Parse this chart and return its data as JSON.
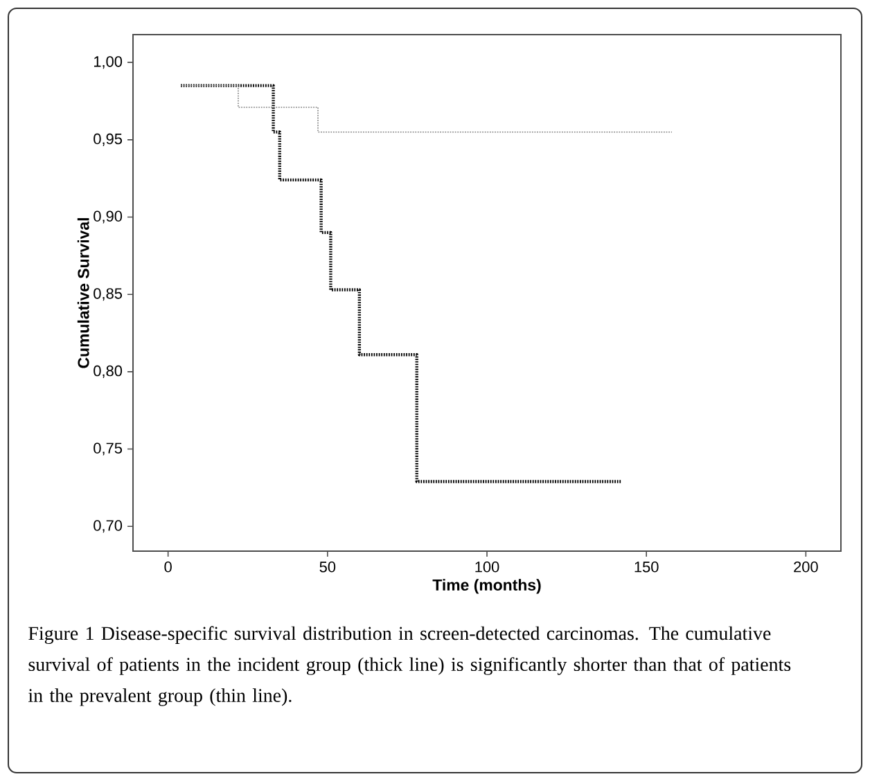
{
  "chart_data": {
    "type": "step",
    "xlabel": "Time (months)",
    "ylabel": "Cumulative Survival",
    "series": [
      {
        "color": "#000000",
        "x": [
          4,
          33,
          35,
          48,
          51,
          60,
          78,
          142
        ],
        "values": [
          0.985,
          0.955,
          0.924,
          0.89,
          0.853,
          0.811,
          0.729,
          0.729
        ]
      },
      {
        "color": "#808080",
        "x": [
          4,
          22,
          47,
          158
        ],
        "values": [
          0.985,
          0.971,
          0.955,
          0.955
        ]
      }
    ],
    "xlim": [
      -11,
      211
    ],
    "ylim": [
      0.684,
      1.018
    ],
    "xticks": [
      0,
      50,
      100,
      150,
      200
    ],
    "yticks": [
      {
        "value": 0.7,
        "label": "0,70"
      },
      {
        "value": 0.75,
        "label": "0,75"
      },
      {
        "value": 0.8,
        "label": "0,80"
      },
      {
        "value": 0.85,
        "label": "0,85"
      },
      {
        "value": 0.9,
        "label": "0,90"
      },
      {
        "value": 0.95,
        "label": "0,95"
      },
      {
        "value": 1.0,
        "label": "1,00"
      }
    ],
    "grid": false,
    "marker": "none",
    "line_style": "dotted",
    "annotations": [
      "Figure 1 Disease-specific survival distribution in screen-detected carcinomas. The cumulative survival of patients in the incident group (thick line) is significantly shorter than that of patients in the prevalent group (thin line)."
    ]
  }
}
